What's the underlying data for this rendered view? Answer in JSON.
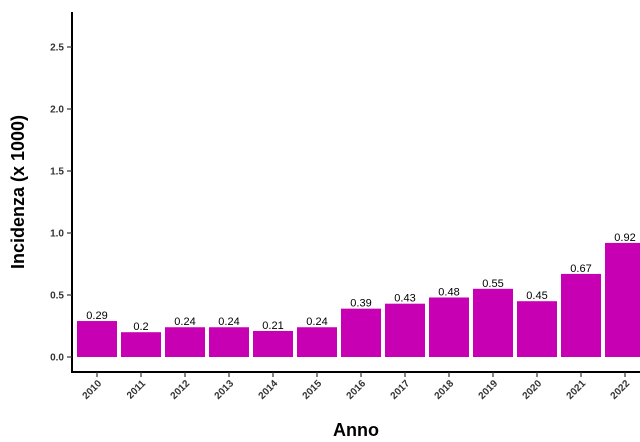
{
  "chart_data": {
    "type": "bar",
    "categories": [
      "2010",
      "2011",
      "2012",
      "2013",
      "2014",
      "2015",
      "2016",
      "2017",
      "2018",
      "2019",
      "2020",
      "2021",
      "2022"
    ],
    "values": [
      0.29,
      0.2,
      0.24,
      0.24,
      0.21,
      0.24,
      0.39,
      0.43,
      0.48,
      0.55,
      0.45,
      0.67,
      0.92
    ],
    "value_labels": [
      "0.29",
      "0.2",
      "0.24",
      "0.24",
      "0.21",
      "0.24",
      "0.39",
      "0.43",
      "0.48",
      "0.55",
      "0.45",
      "0.67",
      "0.92"
    ],
    "xlabel": "Anno",
    "ylabel": "Incidenza (x 1000)",
    "ylim": [
      -0.1,
      2.75
    ],
    "yticks": [
      0.0,
      0.5,
      1.0,
      1.5,
      2.0,
      2.5
    ],
    "ytick_labels": [
      "0.0",
      "0.5",
      "1.0",
      "1.5",
      "2.0",
      "2.5"
    ],
    "grid": false,
    "bar_color": "#C800B4"
  }
}
